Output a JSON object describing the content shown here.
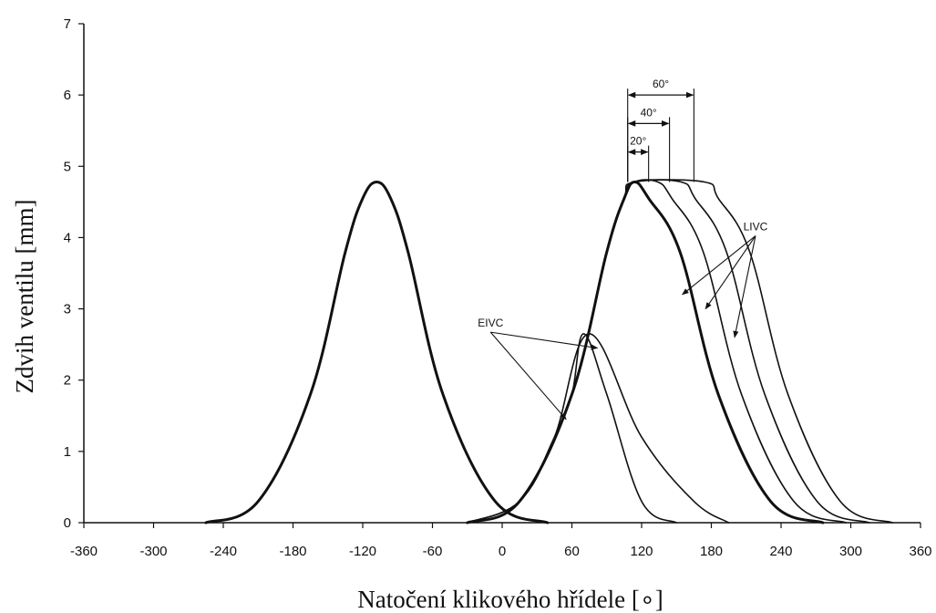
{
  "chart_data": {
    "type": "line",
    "xlabel": "Natočení klikového hřídele [∘]",
    "ylabel": "Zdvih ventilu [mm]",
    "xlim": [
      -360,
      360
    ],
    "ylim": [
      0,
      7
    ],
    "x_ticks": [
      -360,
      -300,
      -240,
      -180,
      -120,
      -60,
      0,
      60,
      120,
      180,
      240,
      300,
      360
    ],
    "x_tick_labels": [
      "-360",
      "-300",
      "-240",
      "-180",
      "-120",
      "-60",
      "0",
      "60",
      "120",
      "180",
      "240",
      "300",
      "360"
    ],
    "y_ticks": [
      0,
      1,
      2,
      3,
      4,
      5,
      6,
      7
    ],
    "y_tick_labels": [
      "0",
      "1",
      "2",
      "3",
      "4",
      "5",
      "6",
      "7"
    ],
    "series": [
      {
        "line_weight": "bold",
        "x": [
          -255,
          -210,
          -165,
          -135,
          -120,
          -108,
          -96,
          -81,
          -51,
          -6,
          39
        ],
        "y": [
          0,
          0.3,
          1.8,
          3.8,
          4.55,
          4.78,
          4.55,
          3.8,
          1.8,
          0.3,
          0
        ]
      },
      {
        "line_weight": "bold",
        "x": [
          -30,
          15,
          60,
          90,
          105,
          114,
          126,
          153,
          186,
          231,
          276
        ],
        "y": [
          0,
          0.3,
          1.8,
          3.8,
          4.55,
          4.78,
          4.55,
          3.8,
          1.8,
          0.3,
          0
        ]
      },
      {
        "line_weight": "thin",
        "x": [
          -30,
          15,
          45,
          60,
          70,
          90,
          120,
          150
        ],
        "y": [
          0,
          0.3,
          1.2,
          1.8,
          2.65,
          1.8,
          0.3,
          0
        ]
      },
      {
        "line_weight": "thin",
        "x": [
          -30,
          15,
          45,
          75,
          120,
          165,
          195
        ],
        "y": [
          0,
          0.3,
          1.2,
          2.65,
          1.2,
          0.3,
          0
        ]
      },
      {
        "line_weight": "thin",
        "x": [
          -30,
          15,
          60,
          90,
          105,
          114,
          134,
          146,
          173,
          206,
          251,
          296
        ],
        "y": [
          0,
          0.3,
          1.8,
          3.8,
          4.55,
          4.78,
          4.78,
          4.55,
          3.8,
          1.8,
          0.3,
          0
        ]
      },
      {
        "line_weight": "thin",
        "x": [
          -30,
          15,
          60,
          90,
          105,
          114,
          154,
          166,
          193,
          226,
          271,
          316
        ],
        "y": [
          0,
          0.3,
          1.8,
          3.8,
          4.55,
          4.78,
          4.78,
          4.55,
          3.8,
          1.8,
          0.3,
          0
        ]
      },
      {
        "line_weight": "thin",
        "x": [
          -30,
          15,
          60,
          90,
          105,
          114,
          174,
          186,
          213,
          246,
          291,
          336
        ],
        "y": [
          0,
          0.3,
          1.8,
          3.8,
          4.55,
          4.78,
          4.78,
          4.55,
          3.8,
          1.8,
          0.3,
          0
        ]
      }
    ],
    "annotations": [
      {
        "text": "60°",
        "bracket_x": [
          108,
          165
        ],
        "y": 6.0
      },
      {
        "text": "40°",
        "bracket_x": [
          108,
          144
        ],
        "y": 5.6
      },
      {
        "text": "20°",
        "bracket_x": [
          108,
          126
        ],
        "y": 5.2
      },
      {
        "text": "LIVC",
        "label_at": [
          218,
          4.1
        ],
        "arrow_targets": [
          [
            155,
            3.2
          ],
          [
            175,
            3.0
          ],
          [
            200,
            2.6
          ]
        ]
      },
      {
        "text": "EIVC",
        "label_at": [
          -10,
          2.75
        ],
        "arrow_targets": [
          [
            55,
            1.45
          ],
          [
            82,
            2.45
          ]
        ]
      }
    ],
    "grid": false,
    "legend": "none"
  }
}
